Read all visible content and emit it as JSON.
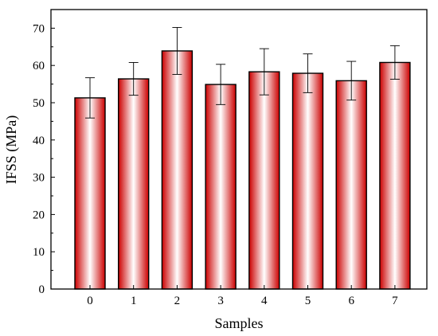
{
  "chart_data": {
    "type": "bar",
    "xlabel": "Samples",
    "ylabel": "IFSS (MPa)",
    "categories": [
      "0",
      "1",
      "2",
      "3",
      "4",
      "5",
      "6",
      "7"
    ],
    "values": [
      51.3,
      56.4,
      63.9,
      54.9,
      58.3,
      57.9,
      55.9,
      60.8
    ],
    "errors": [
      5.4,
      4.4,
      6.3,
      5.4,
      6.2,
      5.2,
      5.2,
      4.5
    ],
    "ylim": [
      0,
      75
    ],
    "yticks": [
      0,
      10,
      20,
      30,
      40,
      50,
      60,
      70
    ],
    "grid": false,
    "legend": "none",
    "colors": {
      "bar_edge": "#cc0000",
      "bar_center": "#ffffff",
      "axis": "#000000"
    }
  }
}
